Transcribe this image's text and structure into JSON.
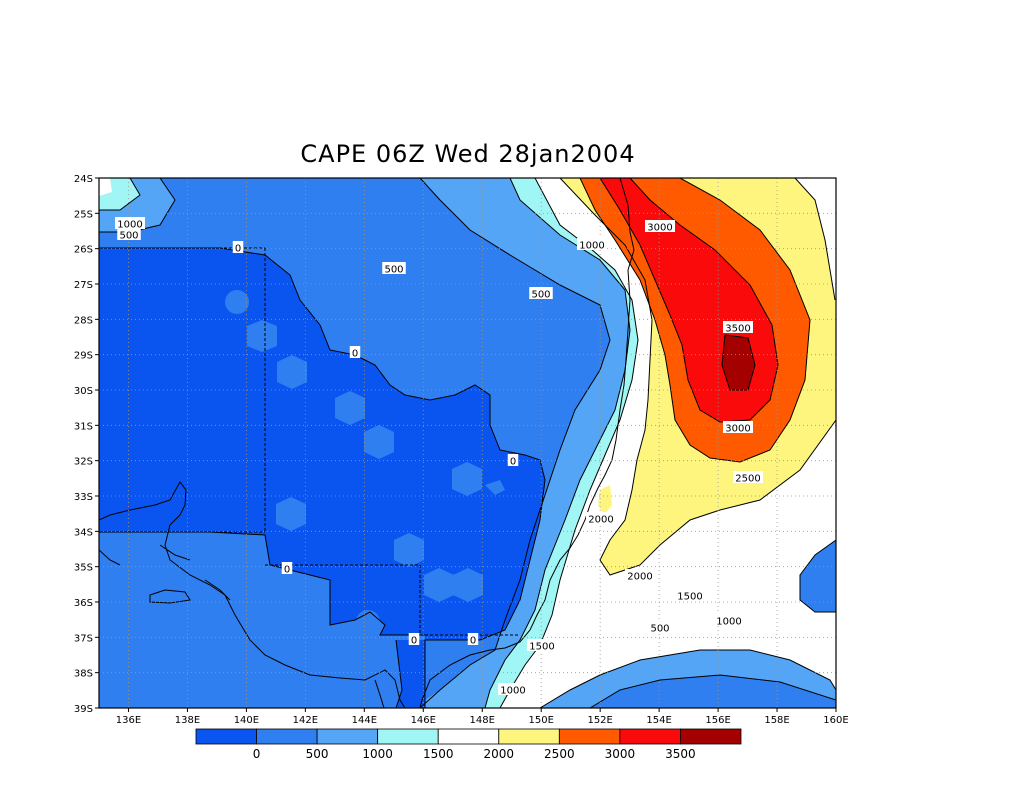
{
  "title": "CAPE 06Z Wed 28jan2004",
  "map": {
    "lat_ticks": [
      "24S",
      "25S",
      "26S",
      "27S",
      "28S",
      "29S",
      "30S",
      "31S",
      "32S",
      "33S",
      "34S",
      "35S",
      "36S",
      "37S",
      "38S",
      "39S"
    ],
    "lon_ticks": [
      "136E",
      "138E",
      "140E",
      "142E",
      "144E",
      "146E",
      "148E",
      "150E",
      "152E",
      "154E",
      "156E",
      "158E",
      "160E"
    ],
    "contour_labels": [
      "1000",
      "500",
      "0",
      "500",
      "500",
      "0",
      "1000",
      "3000",
      "3500",
      "3000",
      "2500",
      "0",
      "2000",
      "0",
      "2000",
      "1500",
      "1000",
      "500",
      "0",
      "0",
      "1500",
      "1000"
    ]
  },
  "colorbar": {
    "colors": [
      "#0a55f0",
      "#2f7ff0",
      "#54a5f5",
      "#a0f5f5",
      "#ffffff",
      "#fdf57d",
      "#ff5a00",
      "#fa0a0a",
      "#a50000"
    ],
    "labels": [
      "0",
      "500",
      "1000",
      "1500",
      "2000",
      "2500",
      "3000",
      "3500"
    ]
  }
}
